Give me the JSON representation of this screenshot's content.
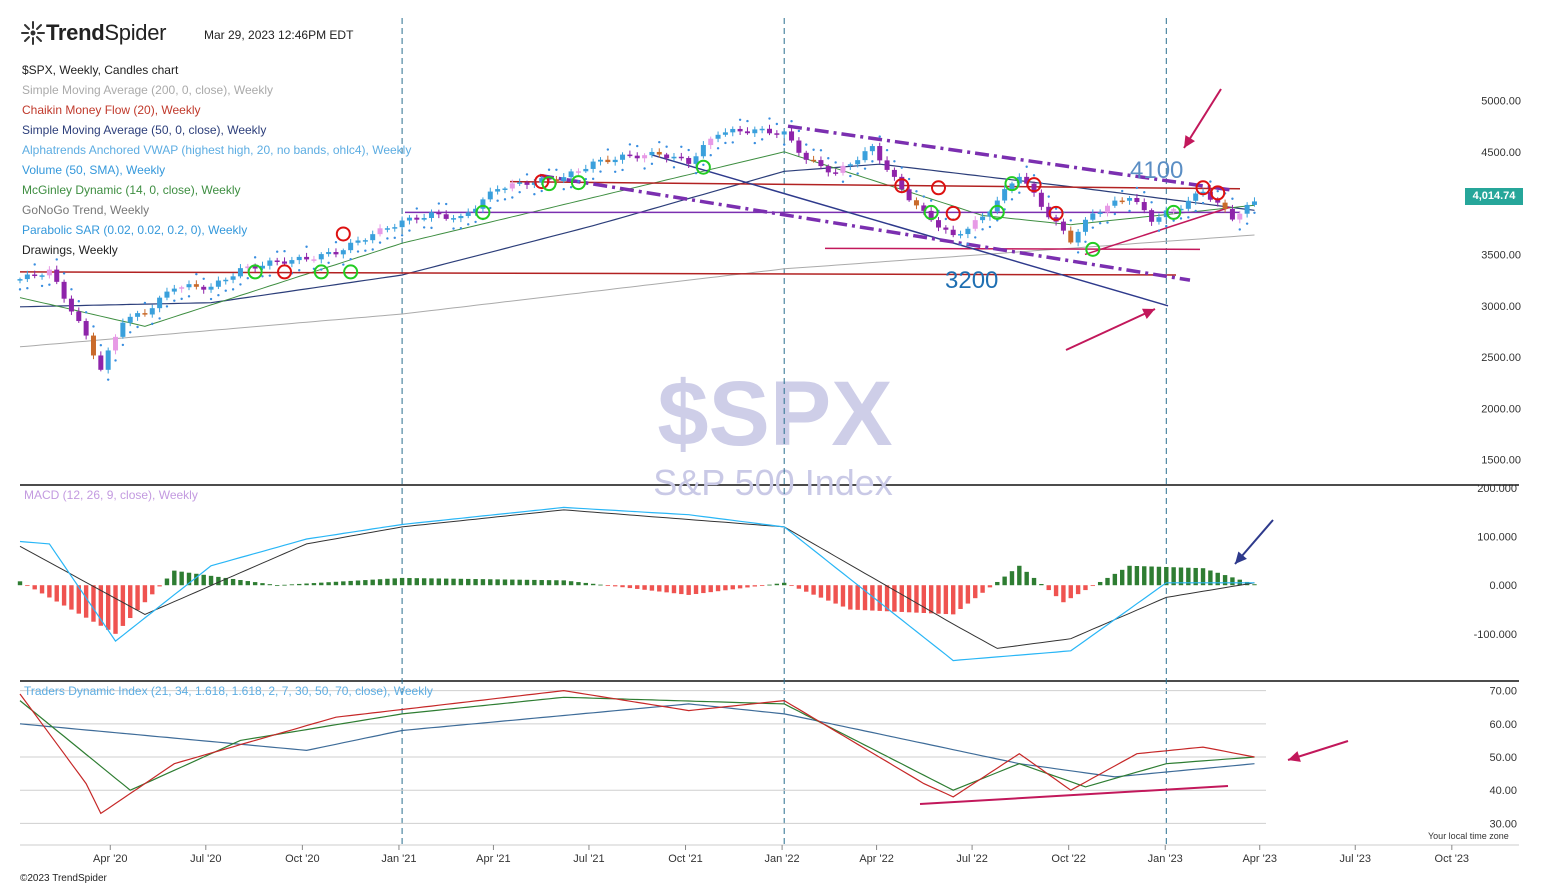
{
  "header": {
    "brand_bold": "Trend",
    "brand_light": "Spider",
    "timestamp": "Mar 29, 2023 12:46PM EDT",
    "copyright": "©2023 TrendSpider",
    "timezone_note": "Your local time zone"
  },
  "legend": [
    {
      "text": "$SPX, Weekly, Candles chart",
      "color": "#222222"
    },
    {
      "text": "Simple Moving Average (200, 0, close), Weekly",
      "color": "#aaaaaa"
    },
    {
      "text": "Chaikin Money Flow (20), Weekly",
      "color": "#c0392b"
    },
    {
      "text": "Simple Moving Average (50, 0, close), Weekly",
      "color": "#2c3e7a"
    },
    {
      "text": "Alphatrends Anchored VWAP (highest high, 20, no bands, ohlc4), Weekly",
      "color": "#5dade2"
    },
    {
      "text": "Volume (50, SMA), Weekly",
      "color": "#3498db"
    },
    {
      "text": "McGinley Dynamic (14, 0, close), Weekly",
      "color": "#3e8e41"
    },
    {
      "text": "GoNoGo Trend, Weekly",
      "color": "#777777"
    },
    {
      "text": "Parabolic SAR (0.02, 0.02, 0.2, 0), Weekly",
      "color": "#3498db"
    },
    {
      "text": "Drawings, Weekly",
      "color": "#222222"
    }
  ],
  "price_badge": "4,014.74",
  "watermark": {
    "symbol": "$SPX",
    "name": "S&P 500 Index"
  },
  "annotations": {
    "level_high": "4100",
    "level_low": "3200"
  },
  "colors": {
    "up": "#3aa0dc",
    "down": "#8e24aa",
    "orange": "#c96a2a",
    "pink": "#e79ae6",
    "sma200": "#aaaaaa",
    "sma50": "#2c3e7a",
    "mcginley": "#3e8e41",
    "sar": "#3a8ee0",
    "trend_purple": "#7b2fb0",
    "red_line": "#b22222",
    "arrow": "#c2185b",
    "navy": "#2e3a8c",
    "macd_line": "#29b6f6",
    "signal_line": "#333333",
    "hist_pos": "#2e7d32",
    "hist_neg": "#ef5350",
    "tdi_red": "#c62828",
    "tdi_green": "#2e7d32",
    "tdi_blue": "#3e6c99",
    "badge": "#26a69a"
  },
  "chart_data": [
    {
      "type": "candlestick",
      "title": "$SPX, Weekly, Candles chart",
      "x_ticks": [
        "Apr '20",
        "Jul '20",
        "Oct '20",
        "Jan '21",
        "Apr '21",
        "Jul '21",
        "Oct '21",
        "Jan '22",
        "Apr '22",
        "Jul '22",
        "Oct '22",
        "Jan '23",
        "Apr '23",
        "Jul '23",
        "Oct '23"
      ],
      "y_ticks": [
        "5000.00",
        "4500.00",
        "3500.00",
        "3000.00",
        "2500.00",
        "2000.00",
        "1500.00"
      ],
      "ylim": [
        1400,
        5200
      ],
      "x_range": [
        "2020-01-06",
        "2023-12-04"
      ],
      "series": [
        {
          "name": "$SPX",
          "points": [
            [
              "2020-01-06",
              3260
            ],
            [
              "2020-02-03",
              3340
            ],
            [
              "2020-02-24",
              2960
            ],
            [
              "2020-03-09",
              2700
            ],
            [
              "2020-03-23",
              2380
            ],
            [
              "2020-04-13",
              2860
            ],
            [
              "2020-05-04",
              2930
            ],
            [
              "2020-06-01",
              3190
            ],
            [
              "2020-07-06",
              3180
            ],
            [
              "2020-08-03",
              3350
            ],
            [
              "2020-09-01",
              3420
            ],
            [
              "2020-10-05",
              3460
            ],
            [
              "2020-11-02",
              3520
            ],
            [
              "2020-12-07",
              3700
            ],
            [
              "2021-01-04",
              3820
            ],
            [
              "2021-02-01",
              3890
            ],
            [
              "2021-03-01",
              3850
            ],
            [
              "2021-04-05",
              4150
            ],
            [
              "2021-05-03",
              4200
            ],
            [
              "2021-06-07",
              4250
            ],
            [
              "2021-07-05",
              4390
            ],
            [
              "2021-08-02",
              4450
            ],
            [
              "2021-09-06",
              4480
            ],
            [
              "2021-10-04",
              4400
            ],
            [
              "2021-11-01",
              4690
            ],
            [
              "2021-12-06",
              4710
            ],
            [
              "2022-01-03",
              4680
            ],
            [
              "2022-01-24",
              4430
            ],
            [
              "2022-02-21",
              4290
            ],
            [
              "2022-03-28",
              4540
            ],
            [
              "2022-04-25",
              4130
            ],
            [
              "2022-05-16",
              3900
            ],
            [
              "2022-06-13",
              3670
            ],
            [
              "2022-07-11",
              3860
            ],
            [
              "2022-08-15",
              4280
            ],
            [
              "2022-09-12",
              3880
            ],
            [
              "2022-10-03",
              3640
            ],
            [
              "2022-10-24",
              3900
            ],
            [
              "2022-11-28",
              4070
            ],
            [
              "2022-12-19",
              3840
            ],
            [
              "2023-01-16",
              3970
            ],
            [
              "2023-02-06",
              4120
            ],
            [
              "2023-03-06",
              3860
            ],
            [
              "2023-03-27",
              4010
            ]
          ]
        },
        {
          "name": "Simple Moving Average (200, 0, close), Weekly",
          "points": [
            [
              "2020-01-06",
              2600
            ],
            [
              "2021-01-04",
              2920
            ],
            [
              "2022-01-03",
              3360
            ],
            [
              "2023-03-27",
              3690
            ]
          ]
        },
        {
          "name": "Simple Moving Average (50, 0, close), Weekly",
          "points": [
            [
              "2020-01-06",
              2990
            ],
            [
              "2020-07-06",
              3030
            ],
            [
              "2021-01-04",
              3300
            ],
            [
              "2021-07-05",
              3780
            ],
            [
              "2022-01-03",
              4310
            ],
            [
              "2022-04-04",
              4380
            ],
            [
              "2022-10-03",
              4160
            ],
            [
              "2023-03-27",
              3930
            ]
          ]
        },
        {
          "name": "McGinley Dynamic (14, 0, close), Weekly",
          "points": [
            [
              "2020-01-06",
              3080
            ],
            [
              "2020-05-04",
              2800
            ],
            [
              "2021-01-04",
              3610
            ],
            [
              "2022-01-03",
              4500
            ],
            [
              "2022-07-11",
              3880
            ],
            [
              "2022-10-03",
              3790
            ],
            [
              "2023-03-27",
              3980
            ]
          ]
        }
      ],
      "annotations": [
        "4100",
        "3200"
      ]
    },
    {
      "type": "bar",
      "title": "MACD (12, 26, 9, close), Weekly",
      "y_ticks": [
        "200.000",
        "100.000",
        "0.000",
        "-100.000"
      ],
      "ylim": [
        -195,
        200
      ],
      "series": [
        {
          "name": "MACD",
          "points": [
            [
              "2020-01-06",
              90
            ],
            [
              "2020-02-03",
              85
            ],
            [
              "2020-04-06",
              -115
            ],
            [
              "2020-07-06",
              40
            ],
            [
              "2020-10-05",
              95
            ],
            [
              "2021-01-04",
              125
            ],
            [
              "2021-06-07",
              160
            ],
            [
              "2021-10-04",
              145
            ],
            [
              "2022-01-03",
              120
            ],
            [
              "2022-06-13",
              -155
            ],
            [
              "2022-10-03",
              -135
            ],
            [
              "2023-01-02",
              5
            ],
            [
              "2023-03-27",
              5
            ]
          ]
        },
        {
          "name": "Signal",
          "points": [
            [
              "2020-01-06",
              80
            ],
            [
              "2020-05-04",
              -60
            ],
            [
              "2020-10-05",
              85
            ],
            [
              "2021-01-04",
              120
            ],
            [
              "2021-06-07",
              155
            ],
            [
              "2022-01-03",
              120
            ],
            [
              "2022-06-13",
              -80
            ],
            [
              "2022-07-25",
              -130
            ],
            [
              "2022-10-03",
              -110
            ],
            [
              "2023-01-02",
              -25
            ],
            [
              "2023-03-27",
              5
            ]
          ]
        },
        {
          "name": "Histogram",
          "points": [
            [
              "2020-01-06",
              8
            ],
            [
              "2020-04-06",
              -100
            ],
            [
              "2020-06-01",
              30
            ],
            [
              "2020-09-07",
              0
            ],
            [
              "2021-01-04",
              15
            ],
            [
              "2021-06-07",
              10
            ],
            [
              "2021-10-04",
              -20
            ],
            [
              "2022-01-03",
              5
            ],
            [
              "2022-03-07",
              -50
            ],
            [
              "2022-06-13",
              -60
            ],
            [
              "2022-08-15",
              40
            ],
            [
              "2022-09-26",
              -35
            ],
            [
              "2022-11-28",
              40
            ],
            [
              "2023-02-06",
              35
            ],
            [
              "2023-03-27",
              2
            ]
          ]
        }
      ]
    },
    {
      "type": "line",
      "title": "Traders Dynamic Index (21, 34, 1.618, 1.618, 2, 7, 30, 50, 70, close), Weekly",
      "y_ticks": [
        "70.00",
        "60.00",
        "50.00",
        "40.00",
        "30.00"
      ],
      "ylim": [
        25,
        72
      ],
      "series": [
        {
          "name": "RSI",
          "points": [
            [
              "2020-01-06",
              69
            ],
            [
              "2020-03-09",
              42
            ],
            [
              "2020-03-23",
              33
            ],
            [
              "2020-06-01",
              48
            ],
            [
              "2020-11-02",
              62
            ],
            [
              "2021-06-07",
              70
            ],
            [
              "2021-10-04",
              64
            ],
            [
              "2022-01-03",
              67
            ],
            [
              "2022-05-16",
              42
            ],
            [
              "2022-06-13",
              38
            ],
            [
              "2022-08-15",
              51
            ],
            [
              "2022-10-03",
              40
            ],
            [
              "2022-12-05",
              51
            ],
            [
              "2023-02-06",
              53
            ],
            [
              "2023-03-27",
              50
            ]
          ]
        },
        {
          "name": "Signal",
          "points": [
            [
              "2020-01-06",
              67
            ],
            [
              "2020-04-20",
              40
            ],
            [
              "2020-08-03",
              55
            ],
            [
              "2021-01-04",
              63
            ],
            [
              "2021-06-07",
              68
            ],
            [
              "2022-01-03",
              66
            ],
            [
              "2022-06-13",
              40
            ],
            [
              "2022-08-15",
              48
            ],
            [
              "2022-10-17",
              41
            ],
            [
              "2023-01-02",
              48
            ],
            [
              "2023-03-27",
              50
            ]
          ]
        },
        {
          "name": "Market Base",
          "points": [
            [
              "2020-01-06",
              60
            ],
            [
              "2020-10-05",
              52
            ],
            [
              "2021-01-04",
              58
            ],
            [
              "2021-10-04",
              66
            ],
            [
              "2022-01-03",
              63
            ],
            [
              "2022-08-15",
              48
            ],
            [
              "2022-11-14",
              44
            ],
            [
              "2023-03-27",
              48
            ]
          ]
        }
      ]
    }
  ]
}
